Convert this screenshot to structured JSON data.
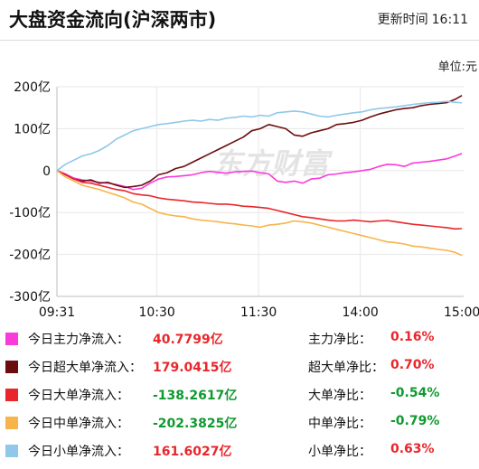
{
  "header": {
    "title": "大盘资金流向(沪深两市)",
    "update_label": "更新时间",
    "update_time": "16:11"
  },
  "unit_label": "单位:元",
  "watermark": "东方财富",
  "chart_data": {
    "type": "line",
    "title": "",
    "xlabel": "",
    "ylabel": "",
    "y_ticks": [
      "200亿",
      "100亿",
      "0",
      "-100亿",
      "-200亿",
      "-300亿"
    ],
    "ylim": [
      -300,
      200
    ],
    "x_ticks": [
      "09:31",
      "10:30",
      "11:30",
      "14:00",
      "15:00"
    ],
    "x_tick_minutes": [
      0,
      59,
      119,
      179,
      239
    ],
    "x_minutes_total": 240,
    "series": [
      {
        "name": "今日主力净流入",
        "color": "#f93bdc",
        "points": [
          [
            0,
            0
          ],
          [
            5,
            -8
          ],
          [
            10,
            -18
          ],
          [
            15,
            -22
          ],
          [
            20,
            -25
          ],
          [
            25,
            -28
          ],
          [
            30,
            -30
          ],
          [
            35,
            -33
          ],
          [
            40,
            -38
          ],
          [
            45,
            -45
          ],
          [
            50,
            -42
          ],
          [
            55,
            -30
          ],
          [
            60,
            -20
          ],
          [
            65,
            -15
          ],
          [
            70,
            -14
          ],
          [
            75,
            -12
          ],
          [
            80,
            -10
          ],
          [
            85,
            -5
          ],
          [
            90,
            -2
          ],
          [
            95,
            -4
          ],
          [
            100,
            -6
          ],
          [
            105,
            -3
          ],
          [
            110,
            -2
          ],
          [
            115,
            -1
          ],
          [
            120,
            -5
          ],
          [
            125,
            -8
          ],
          [
            130,
            -25
          ],
          [
            135,
            -28
          ],
          [
            140,
            -25
          ],
          [
            145,
            -30
          ],
          [
            150,
            -20
          ],
          [
            155,
            -18
          ],
          [
            160,
            -10
          ],
          [
            165,
            -8
          ],
          [
            170,
            -5
          ],
          [
            175,
            -3
          ],
          [
            180,
            0
          ],
          [
            185,
            3
          ],
          [
            190,
            10
          ],
          [
            195,
            15
          ],
          [
            200,
            14
          ],
          [
            205,
            10
          ],
          [
            210,
            18
          ],
          [
            215,
            20
          ],
          [
            220,
            22
          ],
          [
            225,
            25
          ],
          [
            230,
            28
          ],
          [
            235,
            35
          ],
          [
            239,
            40.78
          ]
        ]
      },
      {
        "name": "今日超大单净流入",
        "color": "#6b0d0f",
        "points": [
          [
            0,
            0
          ],
          [
            5,
            -10
          ],
          [
            10,
            -20
          ],
          [
            15,
            -25
          ],
          [
            20,
            -22
          ],
          [
            25,
            -30
          ],
          [
            30,
            -28
          ],
          [
            35,
            -35
          ],
          [
            40,
            -40
          ],
          [
            45,
            -38
          ],
          [
            50,
            -35
          ],
          [
            55,
            -25
          ],
          [
            60,
            -10
          ],
          [
            65,
            -5
          ],
          [
            70,
            5
          ],
          [
            75,
            10
          ],
          [
            80,
            20
          ],
          [
            85,
            30
          ],
          [
            90,
            40
          ],
          [
            95,
            50
          ],
          [
            100,
            60
          ],
          [
            105,
            70
          ],
          [
            110,
            80
          ],
          [
            115,
            95
          ],
          [
            120,
            100
          ],
          [
            125,
            110
          ],
          [
            130,
            105
          ],
          [
            135,
            100
          ],
          [
            140,
            85
          ],
          [
            145,
            82
          ],
          [
            150,
            90
          ],
          [
            155,
            95
          ],
          [
            160,
            100
          ],
          [
            165,
            110
          ],
          [
            170,
            112
          ],
          [
            175,
            115
          ],
          [
            180,
            120
          ],
          [
            185,
            128
          ],
          [
            190,
            135
          ],
          [
            195,
            140
          ],
          [
            200,
            145
          ],
          [
            205,
            148
          ],
          [
            210,
            150
          ],
          [
            215,
            155
          ],
          [
            220,
            158
          ],
          [
            225,
            160
          ],
          [
            230,
            162
          ],
          [
            235,
            170
          ],
          [
            239,
            179.04
          ]
        ]
      },
      {
        "name": "今日大单净流入",
        "color": "#e8262b",
        "points": [
          [
            0,
            0
          ],
          [
            5,
            -10
          ],
          [
            10,
            -20
          ],
          [
            15,
            -28
          ],
          [
            20,
            -30
          ],
          [
            25,
            -35
          ],
          [
            30,
            -40
          ],
          [
            35,
            -45
          ],
          [
            40,
            -48
          ],
          [
            45,
            -55
          ],
          [
            50,
            -58
          ],
          [
            55,
            -60
          ],
          [
            60,
            -65
          ],
          [
            65,
            -68
          ],
          [
            70,
            -70
          ],
          [
            75,
            -72
          ],
          [
            80,
            -75
          ],
          [
            85,
            -76
          ],
          [
            90,
            -78
          ],
          [
            95,
            -80
          ],
          [
            100,
            -80
          ],
          [
            105,
            -82
          ],
          [
            110,
            -85
          ],
          [
            115,
            -86
          ],
          [
            120,
            -88
          ],
          [
            125,
            -90
          ],
          [
            130,
            -95
          ],
          [
            135,
            -100
          ],
          [
            140,
            -105
          ],
          [
            145,
            -110
          ],
          [
            150,
            -112
          ],
          [
            155,
            -115
          ],
          [
            160,
            -118
          ],
          [
            165,
            -120
          ],
          [
            170,
            -120
          ],
          [
            175,
            -118
          ],
          [
            180,
            -120
          ],
          [
            185,
            -122
          ],
          [
            190,
            -120
          ],
          [
            195,
            -119
          ],
          [
            200,
            -122
          ],
          [
            205,
            -125
          ],
          [
            210,
            -128
          ],
          [
            215,
            -130
          ],
          [
            220,
            -132
          ],
          [
            225,
            -134
          ],
          [
            230,
            -136
          ],
          [
            235,
            -139
          ],
          [
            239,
            -138.26
          ]
        ]
      },
      {
        "name": "今日中单净流入",
        "color": "#f7b44a",
        "points": [
          [
            0,
            0
          ],
          [
            5,
            -15
          ],
          [
            10,
            -25
          ],
          [
            15,
            -35
          ],
          [
            20,
            -40
          ],
          [
            25,
            -45
          ],
          [
            30,
            -52
          ],
          [
            35,
            -58
          ],
          [
            40,
            -65
          ],
          [
            45,
            -75
          ],
          [
            50,
            -80
          ],
          [
            55,
            -90
          ],
          [
            60,
            -100
          ],
          [
            65,
            -105
          ],
          [
            70,
            -108
          ],
          [
            75,
            -110
          ],
          [
            80,
            -115
          ],
          [
            85,
            -118
          ],
          [
            90,
            -120
          ],
          [
            95,
            -122
          ],
          [
            100,
            -125
          ],
          [
            105,
            -127
          ],
          [
            110,
            -130
          ],
          [
            115,
            -132
          ],
          [
            120,
            -135
          ],
          [
            125,
            -130
          ],
          [
            130,
            -128
          ],
          [
            135,
            -125
          ],
          [
            140,
            -120
          ],
          [
            145,
            -122
          ],
          [
            150,
            -125
          ],
          [
            155,
            -130
          ],
          [
            160,
            -135
          ],
          [
            165,
            -140
          ],
          [
            170,
            -145
          ],
          [
            175,
            -150
          ],
          [
            180,
            -155
          ],
          [
            185,
            -160
          ],
          [
            190,
            -165
          ],
          [
            195,
            -170
          ],
          [
            200,
            -172
          ],
          [
            205,
            -175
          ],
          [
            210,
            -180
          ],
          [
            215,
            -182
          ],
          [
            220,
            -185
          ],
          [
            225,
            -188
          ],
          [
            230,
            -190
          ],
          [
            235,
            -195
          ],
          [
            239,
            -202.38
          ]
        ]
      },
      {
        "name": "今日小单净流入",
        "color": "#8fc8ea",
        "points": [
          [
            0,
            0
          ],
          [
            5,
            15
          ],
          [
            10,
            25
          ],
          [
            15,
            35
          ],
          [
            20,
            40
          ],
          [
            25,
            48
          ],
          [
            30,
            60
          ],
          [
            35,
            75
          ],
          [
            40,
            85
          ],
          [
            45,
            95
          ],
          [
            50,
            100
          ],
          [
            55,
            105
          ],
          [
            60,
            110
          ],
          [
            65,
            112
          ],
          [
            70,
            115
          ],
          [
            75,
            118
          ],
          [
            80,
            120
          ],
          [
            85,
            118
          ],
          [
            90,
            122
          ],
          [
            95,
            120
          ],
          [
            100,
            125
          ],
          [
            105,
            127
          ],
          [
            110,
            130
          ],
          [
            115,
            128
          ],
          [
            120,
            132
          ],
          [
            125,
            130
          ],
          [
            130,
            138
          ],
          [
            135,
            140
          ],
          [
            140,
            142
          ],
          [
            145,
            140
          ],
          [
            150,
            135
          ],
          [
            155,
            130
          ],
          [
            160,
            128
          ],
          [
            165,
            132
          ],
          [
            170,
            135
          ],
          [
            175,
            138
          ],
          [
            180,
            140
          ],
          [
            185,
            145
          ],
          [
            190,
            148
          ],
          [
            195,
            150
          ],
          [
            200,
            152
          ],
          [
            205,
            155
          ],
          [
            210,
            158
          ],
          [
            215,
            160
          ],
          [
            220,
            162
          ],
          [
            225,
            163
          ],
          [
            230,
            165
          ],
          [
            235,
            163
          ],
          [
            239,
            161.6
          ]
        ]
      }
    ]
  },
  "legend": [
    {
      "label": "今日主力净流入：",
      "value": "40.7799亿",
      "color": "#f93bdc",
      "sign": "pos",
      "ratio_label": "主力净比：",
      "ratio": "0.16%",
      "ratio_sign": "pos"
    },
    {
      "label": "今日超大单净流入：",
      "value": "179.0415亿",
      "color": "#6b0d0f",
      "sign": "pos",
      "ratio_label": "超大单净比：",
      "ratio": "0.70%",
      "ratio_sign": "pos"
    },
    {
      "label": "今日大单净流入：",
      "value": "-138.2617亿",
      "color": "#e8262b",
      "sign": "neg",
      "ratio_label": "大单净比：",
      "ratio": "-0.54%",
      "ratio_sign": "neg"
    },
    {
      "label": "今日中单净流入：",
      "value": "-202.3825亿",
      "color": "#f7b44a",
      "sign": "neg",
      "ratio_label": "中单净比：",
      "ratio": "-0.79%",
      "ratio_sign": "neg"
    },
    {
      "label": "今日小单净流入：",
      "value": "161.6027亿",
      "color": "#8fc8ea",
      "sign": "pos",
      "ratio_label": "小单净比：",
      "ratio": "0.63%",
      "ratio_sign": "pos"
    }
  ]
}
